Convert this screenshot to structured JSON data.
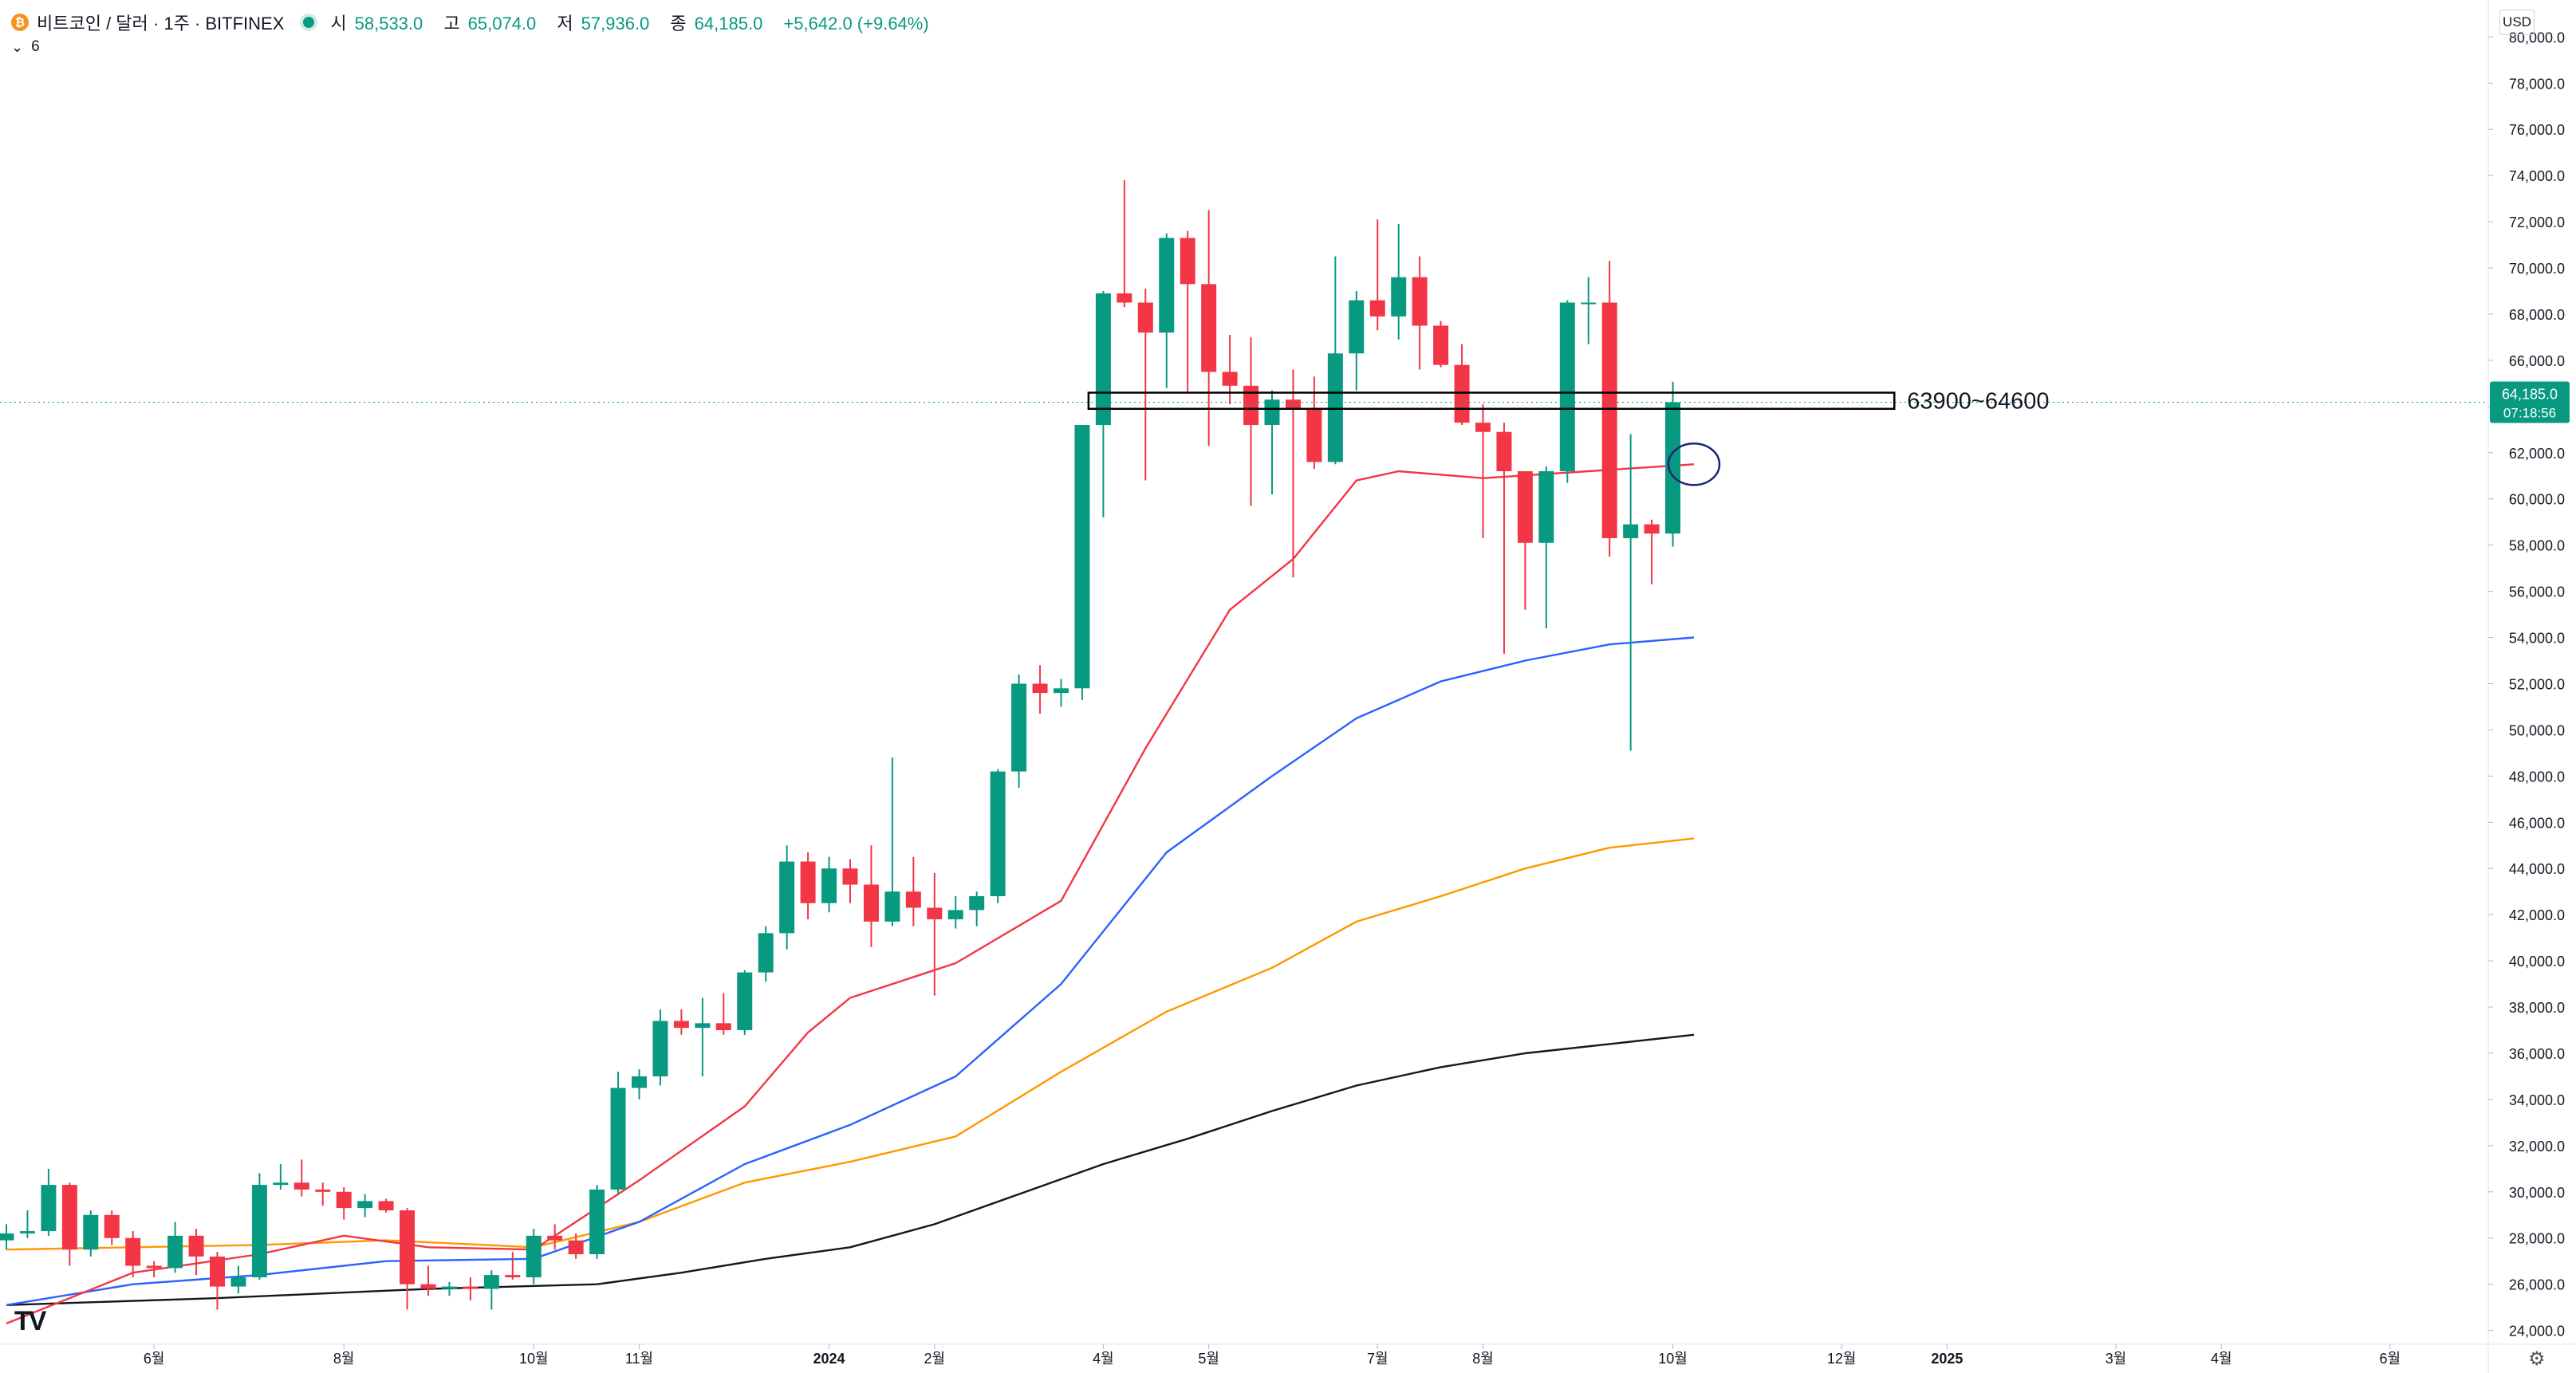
{
  "header": {
    "symbol": "비트코인 / 달러 · 1주 · BITFINEX",
    "open_label": "시",
    "open": "58,533.0",
    "high_label": "고",
    "high": "65,074.0",
    "low_label": "저",
    "low": "57,936.0",
    "close_label": "종",
    "close": "64,185.0",
    "change": "+5,642.0 (+9.64%)"
  },
  "indicator": {
    "count": "6"
  },
  "currency": "USD",
  "logo": "TV",
  "colors": {
    "up": "#089981",
    "down": "#f23645",
    "ema_fast": "#f23645",
    "ema_mid": "#2962ff",
    "ema_slow": "#ff9800",
    "ema_long": "#131722"
  },
  "chart_data": {
    "type": "candlestick",
    "title": "",
    "x_ticks": [
      {
        "i": -1,
        "label": "4월"
      },
      {
        "i": 7,
        "label": "6월"
      },
      {
        "i": 16,
        "label": "8월"
      },
      {
        "i": 25,
        "label": "10월"
      },
      {
        "i": 30,
        "label": "11월"
      },
      {
        "i": 39,
        "label": "2024"
      },
      {
        "i": 44,
        "label": "2월"
      },
      {
        "i": 52,
        "label": "4월"
      },
      {
        "i": 57,
        "label": "5월"
      },
      {
        "i": 65,
        "label": "7월"
      },
      {
        "i": 70,
        "label": "8월"
      },
      {
        "i": 79,
        "label": "10월"
      },
      {
        "i": 87,
        "label": "12월"
      },
      {
        "i": 92,
        "label": "2025"
      },
      {
        "i": 100,
        "label": "3월"
      },
      {
        "i": 105,
        "label": "4월"
      },
      {
        "i": 113,
        "label": "6월"
      }
    ],
    "ylim": [
      23400,
      81600
    ],
    "y_ticks": [
      "24,000.0",
      "26,000.0",
      "28,000.0",
      "30,000.0",
      "32,000.0",
      "34,000.0",
      "36,000.0",
      "38,000.0",
      "40,000.0",
      "42,000.0",
      "44,000.0",
      "46,000.0",
      "48,000.0",
      "50,000.0",
      "52,000.0",
      "54,000.0",
      "56,000.0",
      "58,000.0",
      "60,000.0",
      "62,000.0",
      "64,000.0",
      "66,000.0",
      "68,000.0",
      "70,000.0",
      "72,000.0",
      "74,000.0",
      "76,000.0",
      "78,000.0",
      "80,000.0"
    ],
    "candles": [
      [
        27900,
        28600,
        27500,
        28200
      ],
      [
        28200,
        29200,
        28000,
        28300
      ],
      [
        28300,
        31000,
        28100,
        30300
      ],
      [
        30300,
        30400,
        26800,
        27500
      ],
      [
        27500,
        29200,
        27200,
        29000
      ],
      [
        29000,
        29200,
        27700,
        28000
      ],
      [
        28000,
        28300,
        26300,
        26800
      ],
      [
        26800,
        27000,
        26300,
        26700
      ],
      [
        26700,
        28700,
        26500,
        28100
      ],
      [
        28100,
        28400,
        26400,
        27200
      ],
      [
        27200,
        27400,
        24900,
        25900
      ],
      [
        25900,
        26800,
        25600,
        26300
      ],
      [
        26300,
        30800,
        26200,
        30300
      ],
      [
        30300,
        31200,
        30100,
        30400
      ],
      [
        30400,
        31400,
        29800,
        30100
      ],
      [
        30100,
        30400,
        29400,
        30000
      ],
      [
        30000,
        30200,
        28800,
        29300
      ],
      [
        29300,
        29900,
        28900,
        29600
      ],
      [
        29600,
        29700,
        29100,
        29200
      ],
      [
        29200,
        29300,
        24900,
        26000
      ],
      [
        26000,
        26800,
        25500,
        25800
      ],
      [
        25800,
        26100,
        25500,
        25900
      ],
      [
        25900,
        26300,
        25300,
        25800
      ],
      [
        25800,
        26600,
        24900,
        26400
      ],
      [
        26400,
        27400,
        26200,
        26300
      ],
      [
        26300,
        28400,
        26000,
        28100
      ],
      [
        28100,
        28600,
        27500,
        27900
      ],
      [
        27900,
        28200,
        27100,
        27300
      ],
      [
        27300,
        30300,
        27100,
        30100
      ],
      [
        30100,
        35200,
        29900,
        34500
      ],
      [
        34500,
        35300,
        34000,
        35000
      ],
      [
        35000,
        37900,
        34600,
        37400
      ],
      [
        37400,
        37900,
        36800,
        37100
      ],
      [
        37100,
        38400,
        35000,
        37300
      ],
      [
        37300,
        38600,
        36800,
        37000
      ],
      [
        37000,
        39600,
        36800,
        39500
      ],
      [
        39500,
        41500,
        39100,
        41200
      ],
      [
        41200,
        45000,
        40500,
        44300
      ],
      [
        44300,
        44700,
        41800,
        42500
      ],
      [
        42500,
        44500,
        42100,
        44000
      ],
      [
        44000,
        44400,
        42500,
        43300
      ],
      [
        43300,
        45000,
        40600,
        41700
      ],
      [
        41700,
        48800,
        41500,
        43000
      ],
      [
        43000,
        44500,
        41500,
        42300
      ],
      [
        42300,
        43800,
        38500,
        41800
      ],
      [
        41800,
        42800,
        41400,
        42200
      ],
      [
        42200,
        43000,
        41500,
        42800
      ],
      [
        42800,
        48300,
        42500,
        48200
      ],
      [
        48200,
        52400,
        47500,
        52000
      ],
      [
        52000,
        52800,
        50700,
        51600
      ],
      [
        51600,
        52200,
        51000,
        51800
      ],
      [
        51800,
        63000,
        51300,
        63200
      ],
      [
        63200,
        69000,
        59200,
        68900
      ],
      [
        68900,
        73800,
        68300,
        68500
      ],
      [
        68500,
        69100,
        60800,
        67200
      ],
      [
        67200,
        71500,
        64800,
        71300
      ],
      [
        71300,
        71600,
        64600,
        69300
      ],
      [
        69300,
        72500,
        62300,
        65500
      ],
      [
        65500,
        67100,
        64100,
        64900
      ],
      [
        64900,
        67000,
        59700,
        63200
      ],
      [
        63200,
        64700,
        60200,
        64300
      ],
      [
        64300,
        65600,
        56600,
        63900
      ],
      [
        63900,
        65300,
        61300,
        61600
      ],
      [
        61600,
        70500,
        61500,
        66300
      ],
      [
        66300,
        69000,
        64700,
        68600
      ],
      [
        68600,
        72100,
        67300,
        67900
      ],
      [
        67900,
        71900,
        66900,
        69600
      ],
      [
        69600,
        70500,
        65600,
        67500
      ],
      [
        67500,
        67700,
        65700,
        65800
      ],
      [
        65800,
        66700,
        63200,
        63300
      ],
      [
        63300,
        64100,
        58300,
        62900
      ],
      [
        62900,
        63300,
        53300,
        61200
      ],
      [
        61200,
        61200,
        55200,
        58100
      ],
      [
        58100,
        61400,
        54400,
        61200
      ],
      [
        61200,
        68600,
        60700,
        68500
      ],
      [
        68500,
        69600,
        66700,
        68500
      ],
      [
        68500,
        70300,
        57500,
        58300
      ],
      [
        58300,
        62800,
        49100,
        58900
      ],
      [
        58900,
        59100,
        56300,
        58500
      ],
      [
        58500,
        65074,
        57936,
        64185
      ]
    ],
    "ema_fast": [
      [
        0,
        24300
      ],
      [
        6,
        26500
      ],
      [
        12,
        27300
      ],
      [
        16,
        28100
      ],
      [
        20,
        27600
      ],
      [
        25,
        27500
      ],
      [
        30,
        30500
      ],
      [
        35,
        33700
      ],
      [
        38,
        36900
      ],
      [
        40,
        38400
      ],
      [
        45,
        39900
      ],
      [
        50,
        42600
      ],
      [
        54,
        49200
      ],
      [
        58,
        55200
      ],
      [
        61,
        57400
      ],
      [
        64,
        60800
      ],
      [
        66,
        61200
      ],
      [
        70,
        60900
      ],
      [
        75,
        61200
      ],
      [
        80,
        61500
      ]
    ],
    "ema_mid": [
      [
        0,
        25100
      ],
      [
        6,
        26000
      ],
      [
        12,
        26400
      ],
      [
        18,
        27000
      ],
      [
        25,
        27100
      ],
      [
        30,
        28700
      ],
      [
        35,
        31200
      ],
      [
        40,
        32900
      ],
      [
        45,
        35000
      ],
      [
        50,
        39000
      ],
      [
        55,
        44700
      ],
      [
        60,
        48000
      ],
      [
        64,
        50500
      ],
      [
        68,
        52100
      ],
      [
        72,
        53000
      ],
      [
        76,
        53700
      ],
      [
        80,
        54000
      ]
    ],
    "ema_slow": [
      [
        0,
        27500
      ],
      [
        6,
        27600
      ],
      [
        12,
        27700
      ],
      [
        18,
        27900
      ],
      [
        25,
        27600
      ],
      [
        30,
        28700
      ],
      [
        35,
        30400
      ],
      [
        40,
        31300
      ],
      [
        45,
        32400
      ],
      [
        50,
        35200
      ],
      [
        55,
        37800
      ],
      [
        60,
        39700
      ],
      [
        64,
        41700
      ],
      [
        68,
        42800
      ],
      [
        72,
        44000
      ],
      [
        76,
        44900
      ],
      [
        80,
        45300
      ]
    ],
    "ema_long": [
      [
        0,
        25100
      ],
      [
        10,
        25400
      ],
      [
        20,
        25800
      ],
      [
        28,
        26000
      ],
      [
        32,
        26500
      ],
      [
        36,
        27100
      ],
      [
        40,
        27600
      ],
      [
        44,
        28600
      ],
      [
        48,
        29900
      ],
      [
        52,
        31200
      ],
      [
        56,
        32300
      ],
      [
        60,
        33500
      ],
      [
        64,
        34600
      ],
      [
        68,
        35400
      ],
      [
        72,
        36000
      ],
      [
        76,
        36400
      ],
      [
        80,
        36800
      ]
    ],
    "zone": {
      "i_start": 51.3,
      "i_end": 89.5,
      "low": 63900,
      "high": 64600,
      "label": "63900~64600"
    },
    "circle": {
      "i": 80,
      "value": 61500
    },
    "last_price": {
      "value": 64185,
      "label": "64,185.0",
      "timer": "07:18:56"
    }
  }
}
